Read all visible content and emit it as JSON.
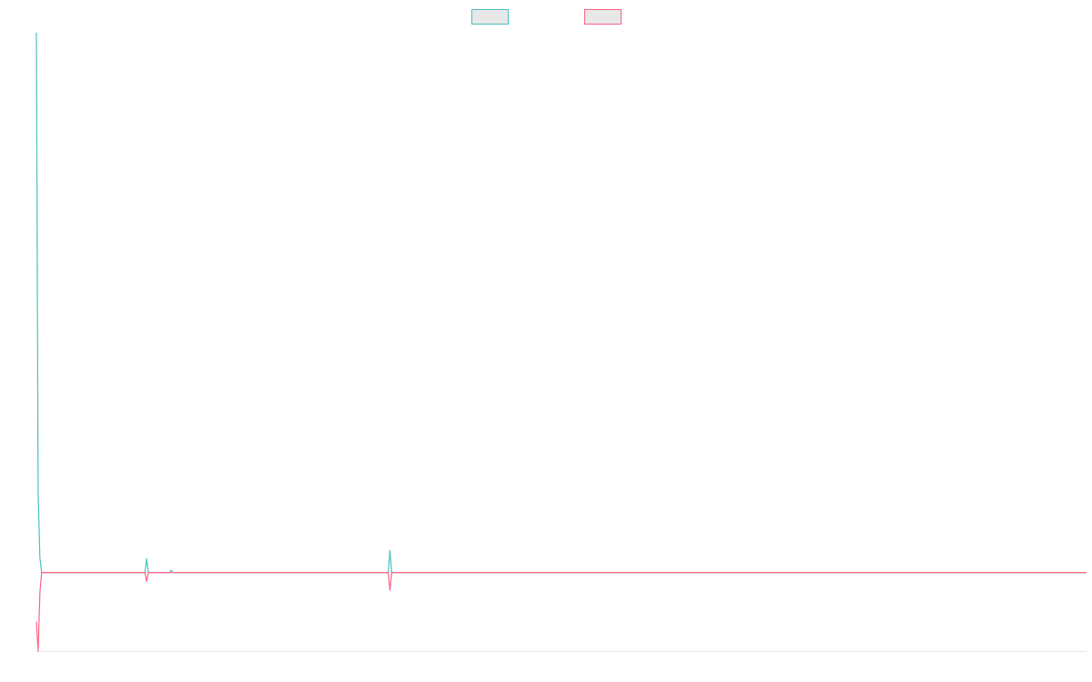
{
  "chart_data": {
    "type": "line",
    "xlabel": "",
    "ylabel": "",
    "grid": false,
    "legend_placement": "top-center",
    "x": [
      0,
      1,
      2,
      3,
      60,
      61,
      62,
      63,
      64,
      65,
      66,
      67,
      68,
      76,
      77,
      78,
      200,
      201,
      202,
      203,
      204,
      600
    ],
    "ylim": [
      -0.16,
      1.1
    ],
    "series": [
      {
        "color": "#4bc0c0",
        "fill": "#e8e8e8",
        "values": [
          1.1,
          0.16,
          0.03,
          0.0,
          0.0,
          0.0,
          0.0,
          0.028,
          0.0,
          0.0,
          0.0,
          0.0,
          0.0,
          0.0,
          0.005,
          0.0,
          0.0,
          0.0,
          0.045,
          0.0,
          0.0,
          0.0
        ]
      },
      {
        "color": "#ff6384",
        "fill": "#e8e8e8",
        "values": [
          -0.1,
          -0.16,
          -0.04,
          0.0,
          0.0,
          0.0,
          0.0,
          -0.018,
          0.0,
          0.0,
          0.0,
          0.0,
          0.0,
          0.0,
          0.0,
          0.0,
          0.0,
          0.0,
          -0.036,
          0.0,
          0.0,
          0.0
        ]
      }
    ]
  }
}
